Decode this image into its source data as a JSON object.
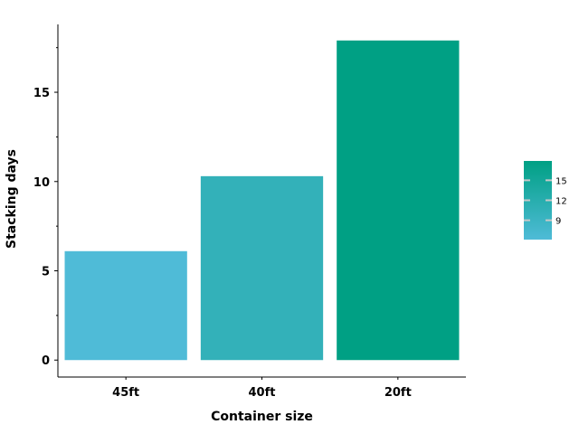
{
  "chart_data": {
    "type": "bar",
    "categories": [
      "45ft",
      "40ft",
      "20ft"
    ],
    "values": [
      6.1,
      10.3,
      17.9
    ],
    "xlabel": "Container size",
    "ylabel": "Stacking days",
    "ylim": [
      -0.95,
      18.8
    ],
    "yticks": [
      0,
      5,
      10,
      15
    ],
    "ytick_labels": [
      "0",
      "5",
      "10",
      "15"
    ],
    "grid": false,
    "legend": {
      "position": "right",
      "type": "colorbar",
      "range": [
        6.1,
        17.9
      ],
      "ticks": [
        9,
        12,
        15
      ],
      "tick_labels": [
        "9",
        "12",
        "15"
      ]
    },
    "colors": {
      "low": "#4fbbd7",
      "high": "#00a084",
      "axis": "#000000",
      "colorbar_tick": "#c8c8c8"
    }
  }
}
